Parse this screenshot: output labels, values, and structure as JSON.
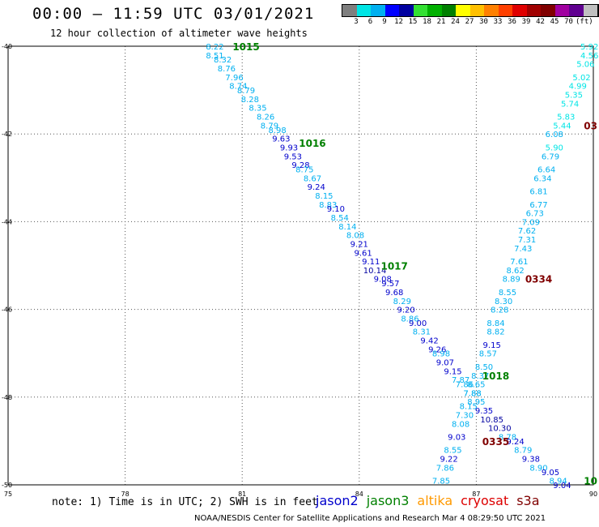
{
  "header": {
    "title": "00:00 – 11:59 UTC 03/01/2021",
    "subtitle": "12 hour collection of altimeter wave heights"
  },
  "colorbar": {
    "colors": [
      "#7f7f7f",
      "#00e5e5",
      "#00b0f0",
      "#0000ff",
      "#0000a0",
      "#33e033",
      "#00b000",
      "#008000",
      "#ffff00",
      "#ffc000",
      "#ff8000",
      "#ff4000",
      "#e00000",
      "#a00000",
      "#800000",
      "#a000a0",
      "#600090",
      "#c0c0c0",
      "#000000"
    ],
    "labels": [
      "3",
      "6",
      "9",
      "12",
      "15",
      "18",
      "21",
      "24",
      "27",
      "30",
      "33",
      "36",
      "39",
      "42",
      "45",
      "70",
      "(ft)"
    ]
  },
  "footer": {
    "note": "note: 1) Time is in UTC; 2) SWH is in feet",
    "legend": [
      {
        "name": "jason2",
        "color": "#0000cc"
      },
      {
        "name": "jason3",
        "color": "#008000"
      },
      {
        "name": "altika",
        "color": "#ff9900"
      },
      {
        "name": "cryosat",
        "color": "#dd0000"
      },
      {
        "name": "s3a",
        "color": "#800000"
      }
    ],
    "credit": "NOAA/NESDIS Center for Satellite Applications and Research   Mar  4 08:29:50 UTC 2021"
  },
  "chart_data": {
    "type": "scatter",
    "title": "00:00 – 11:59 UTC 03/01/2021",
    "subtitle": "12 hour collection of altimeter wave heights",
    "xlim": [
      75,
      90
    ],
    "ylim": [
      -50,
      -40
    ],
    "xticks": [
      "75",
      "78",
      "81",
      "84",
      "87",
      "90"
    ],
    "yticks": [
      "-40",
      "-42",
      "-44",
      "-46",
      "-48",
      "-50"
    ],
    "grid": true,
    "time_labels": [
      {
        "text": "1015",
        "x": 81.1,
        "y": -40.0,
        "color": "#008000"
      },
      {
        "text": "1016",
        "x": 82.8,
        "y": -42.2,
        "color": "#008000"
      },
      {
        "text": "1017",
        "x": 84.9,
        "y": -45.0,
        "color": "#008000"
      },
      {
        "text": "1018",
        "x": 87.5,
        "y": -47.5,
        "color": "#008000"
      },
      {
        "text": "10",
        "x": 89.8,
        "y": -49.9,
        "color": "#008000"
      },
      {
        "text": "03",
        "x": 89.8,
        "y": -41.8,
        "color": "#800000"
      },
      {
        "text": "0334",
        "x": 88.6,
        "y": -45.3,
        "color": "#800000"
      },
      {
        "text": "0335",
        "x": 87.5,
        "y": -49.0,
        "color": "#800000"
      }
    ],
    "series": [
      {
        "name": "jason3",
        "points": [
          {
            "x": 80.3,
            "y": -40.0,
            "v": "8.22",
            "c": "#00b0f0"
          },
          {
            "x": 80.3,
            "y": -40.2,
            "v": "8.51",
            "c": "#00b0f0"
          },
          {
            "x": 80.5,
            "y": -40.3,
            "v": "8.32",
            "c": "#00b0f0"
          },
          {
            "x": 80.6,
            "y": -40.5,
            "v": "8.76",
            "c": "#00b0f0"
          },
          {
            "x": 80.8,
            "y": -40.7,
            "v": "7.96",
            "c": "#00b0f0"
          },
          {
            "x": 80.9,
            "y": -40.9,
            "v": "8.74",
            "c": "#00b0f0"
          },
          {
            "x": 81.1,
            "y": -41.0,
            "v": "8.79",
            "c": "#00b0f0"
          },
          {
            "x": 81.2,
            "y": -41.2,
            "v": "8.28",
            "c": "#00b0f0"
          },
          {
            "x": 81.4,
            "y": -41.4,
            "v": "8.35",
            "c": "#00b0f0"
          },
          {
            "x": 81.6,
            "y": -41.6,
            "v": "8.26",
            "c": "#00b0f0"
          },
          {
            "x": 81.7,
            "y": -41.8,
            "v": "8.79",
            "c": "#00b0f0"
          },
          {
            "x": 81.9,
            "y": -41.9,
            "v": "8.98",
            "c": "#00b0f0"
          },
          {
            "x": 82.0,
            "y": -42.1,
            "v": "9.63",
            "c": "#0000cc"
          },
          {
            "x": 82.2,
            "y": -42.3,
            "v": "9.93",
            "c": "#0000cc"
          },
          {
            "x": 82.3,
            "y": -42.5,
            "v": "9.53",
            "c": "#0000cc"
          },
          {
            "x": 82.5,
            "y": -42.7,
            "v": "9.28",
            "c": "#0000cc"
          },
          {
            "x": 82.6,
            "y": -42.8,
            "v": "8.75",
            "c": "#00b0f0"
          },
          {
            "x": 82.8,
            "y": -43.0,
            "v": "8.67",
            "c": "#00b0f0"
          },
          {
            "x": 82.9,
            "y": -43.2,
            "v": "9.24",
            "c": "#0000cc"
          },
          {
            "x": 83.1,
            "y": -43.4,
            "v": "8.15",
            "c": "#00b0f0"
          },
          {
            "x": 83.2,
            "y": -43.6,
            "v": "8.83",
            "c": "#00b0f0"
          },
          {
            "x": 83.4,
            "y": -43.7,
            "v": "9.10",
            "c": "#0000cc"
          },
          {
            "x": 83.5,
            "y": -43.9,
            "v": "8.54",
            "c": "#00b0f0"
          },
          {
            "x": 83.7,
            "y": -44.1,
            "v": "8.14",
            "c": "#00b0f0"
          },
          {
            "x": 83.9,
            "y": -44.3,
            "v": "8.08",
            "c": "#00b0f0"
          },
          {
            "x": 84.0,
            "y": -44.5,
            "v": "9.21",
            "c": "#0000cc"
          },
          {
            "x": 84.1,
            "y": -44.7,
            "v": "9.61",
            "c": "#0000cc"
          },
          {
            "x": 84.3,
            "y": -44.9,
            "v": "9.11",
            "c": "#0000cc"
          },
          {
            "x": 84.4,
            "y": -45.1,
            "v": "10.14",
            "c": "#0000a0"
          },
          {
            "x": 84.6,
            "y": -45.3,
            "v": "9.08",
            "c": "#0000cc"
          },
          {
            "x": 84.8,
            "y": -45.4,
            "v": "9.57",
            "c": "#0000cc"
          },
          {
            "x": 84.9,
            "y": -45.6,
            "v": "9.68",
            "c": "#0000cc"
          },
          {
            "x": 85.1,
            "y": -45.8,
            "v": "8.29",
            "c": "#00b0f0"
          },
          {
            "x": 85.2,
            "y": -46.0,
            "v": "9.20",
            "c": "#0000cc"
          },
          {
            "x": 85.3,
            "y": -46.2,
            "v": "8.86",
            "c": "#00b0f0"
          },
          {
            "x": 85.5,
            "y": -46.3,
            "v": "9.00",
            "c": "#0000cc"
          },
          {
            "x": 85.6,
            "y": -46.5,
            "v": "8.31",
            "c": "#00b0f0"
          },
          {
            "x": 85.8,
            "y": -46.7,
            "v": "9.42",
            "c": "#0000cc"
          },
          {
            "x": 86.0,
            "y": -46.9,
            "v": "9.26",
            "c": "#0000cc"
          },
          {
            "x": 86.1,
            "y": -47.0,
            "v": "8.98",
            "c": "#00b0f0"
          },
          {
            "x": 86.2,
            "y": -47.2,
            "v": "9.07",
            "c": "#0000cc"
          },
          {
            "x": 86.4,
            "y": -47.4,
            "v": "9.15",
            "c": "#0000cc"
          },
          {
            "x": 86.6,
            "y": -47.6,
            "v": "7.87",
            "c": "#00b0f0"
          },
          {
            "x": 86.7,
            "y": -47.7,
            "v": "7.86",
            "c": "#00b0f0"
          },
          {
            "x": 86.9,
            "y": -47.9,
            "v": "7.88",
            "c": "#00b0f0"
          },
          {
            "x": 87.0,
            "y": -48.1,
            "v": "8.95",
            "c": "#00b0f0"
          },
          {
            "x": 87.2,
            "y": -48.3,
            "v": "9.35",
            "c": "#0000cc"
          },
          {
            "x": 87.4,
            "y": -48.5,
            "v": "10.85",
            "c": "#0000a0"
          },
          {
            "x": 87.6,
            "y": -48.7,
            "v": "10.30",
            "c": "#0000a0"
          },
          {
            "x": 87.8,
            "y": -48.9,
            "v": "8.78",
            "c": "#00b0f0"
          },
          {
            "x": 88.0,
            "y": -49.0,
            "v": "9.24",
            "c": "#0000cc"
          },
          {
            "x": 88.2,
            "y": -49.2,
            "v": "8.79",
            "c": "#00b0f0"
          },
          {
            "x": 88.4,
            "y": -49.4,
            "v": "9.38",
            "c": "#0000cc"
          },
          {
            "x": 88.6,
            "y": -49.6,
            "v": "8.90",
            "c": "#00b0f0"
          },
          {
            "x": 88.9,
            "y": -49.7,
            "v": "9.05",
            "c": "#0000cc"
          },
          {
            "x": 89.1,
            "y": -49.9,
            "v": "8.94",
            "c": "#00b0f0"
          },
          {
            "x": 89.2,
            "y": -50.0,
            "v": "9.04",
            "c": "#0000cc"
          }
        ]
      },
      {
        "name": "s3a",
        "points": [
          {
            "x": 89.9,
            "y": -40.0,
            "v": "5.92",
            "c": "#00e5e5"
          },
          {
            "x": 89.9,
            "y": -40.2,
            "v": "4.56",
            "c": "#00e5e5"
          },
          {
            "x": 89.8,
            "y": -40.4,
            "v": "5.06",
            "c": "#00e5e5"
          },
          {
            "x": 89.7,
            "y": -40.7,
            "v": "5.02",
            "c": "#00e5e5"
          },
          {
            "x": 89.6,
            "y": -40.9,
            "v": "4.99",
            "c": "#00e5e5"
          },
          {
            "x": 89.5,
            "y": -41.1,
            "v": "5.35",
            "c": "#00e5e5"
          },
          {
            "x": 89.4,
            "y": -41.3,
            "v": "5.74",
            "c": "#00e5e5"
          },
          {
            "x": 89.3,
            "y": -41.6,
            "v": "5.83",
            "c": "#00e5e5"
          },
          {
            "x": 89.2,
            "y": -41.8,
            "v": "5.44",
            "c": "#00e5e5"
          },
          {
            "x": 89.0,
            "y": -42.0,
            "v": "6.08",
            "c": "#00b0f0"
          },
          {
            "x": 89.0,
            "y": -42.3,
            "v": "5.90",
            "c": "#00e5e5"
          },
          {
            "x": 88.9,
            "y": -42.5,
            "v": "6.79",
            "c": "#00b0f0"
          },
          {
            "x": 88.8,
            "y": -42.8,
            "v": "6.64",
            "c": "#00b0f0"
          },
          {
            "x": 88.7,
            "y": -43.0,
            "v": "6.34",
            "c": "#00b0f0"
          },
          {
            "x": 88.6,
            "y": -43.3,
            "v": "6.81",
            "c": "#00b0f0"
          },
          {
            "x": 88.6,
            "y": -43.6,
            "v": "6.77",
            "c": "#00b0f0"
          },
          {
            "x": 88.5,
            "y": -43.8,
            "v": "6.73",
            "c": "#00b0f0"
          },
          {
            "x": 88.4,
            "y": -44.0,
            "v": "7.09",
            "c": "#00b0f0"
          },
          {
            "x": 88.3,
            "y": -44.2,
            "v": "7.62",
            "c": "#00b0f0"
          },
          {
            "x": 88.3,
            "y": -44.4,
            "v": "7.31",
            "c": "#00b0f0"
          },
          {
            "x": 88.2,
            "y": -44.6,
            "v": "7.43",
            "c": "#00b0f0"
          },
          {
            "x": 88.1,
            "y": -44.9,
            "v": "7.61",
            "c": "#00b0f0"
          },
          {
            "x": 88.0,
            "y": -45.1,
            "v": "8.62",
            "c": "#00b0f0"
          },
          {
            "x": 87.9,
            "y": -45.3,
            "v": "8.89",
            "c": "#00b0f0"
          },
          {
            "x": 87.8,
            "y": -45.6,
            "v": "8.55",
            "c": "#00b0f0"
          },
          {
            "x": 87.7,
            "y": -45.8,
            "v": "8.30",
            "c": "#00b0f0"
          },
          {
            "x": 87.6,
            "y": -46.0,
            "v": "8.28",
            "c": "#00b0f0"
          },
          {
            "x": 87.5,
            "y": -46.3,
            "v": "8.84",
            "c": "#00b0f0"
          },
          {
            "x": 87.5,
            "y": -46.5,
            "v": "8.82",
            "c": "#00b0f0"
          },
          {
            "x": 87.4,
            "y": -46.8,
            "v": "9.15",
            "c": "#0000cc"
          },
          {
            "x": 87.3,
            "y": -47.0,
            "v": "8.57",
            "c": "#00b0f0"
          },
          {
            "x": 87.2,
            "y": -47.3,
            "v": "8.50",
            "c": "#00b0f0"
          },
          {
            "x": 87.1,
            "y": -47.5,
            "v": "8.37",
            "c": "#00b0f0"
          },
          {
            "x": 87.0,
            "y": -47.7,
            "v": "8.65",
            "c": "#00b0f0"
          },
          {
            "x": 86.9,
            "y": -47.9,
            "v": "7.88",
            "c": "#00b0f0"
          },
          {
            "x": 86.8,
            "y": -48.2,
            "v": "8.15",
            "c": "#00b0f0"
          },
          {
            "x": 86.7,
            "y": -48.4,
            "v": "7.30",
            "c": "#00b0f0"
          },
          {
            "x": 86.6,
            "y": -48.6,
            "v": "8.08",
            "c": "#00b0f0"
          },
          {
            "x": 86.5,
            "y": -48.9,
            "v": "9.03",
            "c": "#0000cc"
          },
          {
            "x": 86.4,
            "y": -49.2,
            "v": "8.55",
            "c": "#00b0f0"
          },
          {
            "x": 86.3,
            "y": -49.4,
            "v": "9.22",
            "c": "#0000cc"
          },
          {
            "x": 86.2,
            "y": -49.6,
            "v": "7.86",
            "c": "#00b0f0"
          },
          {
            "x": 86.1,
            "y": -49.9,
            "v": "7.85",
            "c": "#00b0f0"
          }
        ]
      }
    ]
  }
}
